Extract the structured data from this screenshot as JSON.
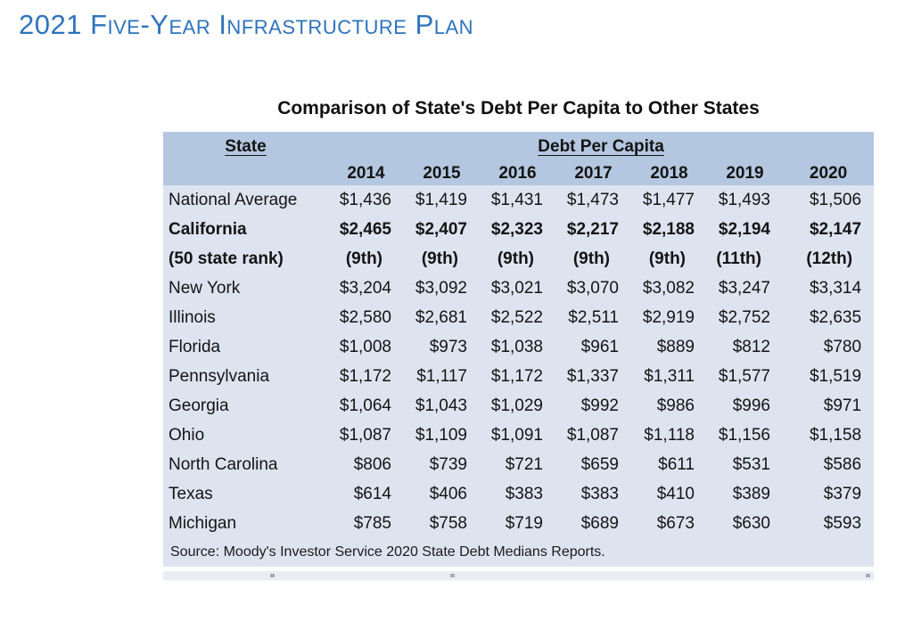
{
  "page": {
    "heading": "2021 Five-Year Infrastructure Plan"
  },
  "colors": {
    "heading_blue": "#2E73BD",
    "table_header_bg": "#b4c7e0",
    "table_body_bg": "#dde4f0"
  },
  "table": {
    "title": "Comparison of State's Debt Per Capita to Other States",
    "state_header": "State",
    "group_header": "Debt Per Capita",
    "years": [
      "2014",
      "2015",
      "2016",
      "2017",
      "2018",
      "2019",
      "2020"
    ],
    "rows": [
      {
        "label": "National Average",
        "bold": false,
        "rank": false,
        "values": [
          "$1,436",
          "$1,419",
          "$1,431",
          "$1,473",
          "$1,477",
          "$1,493",
          "$1,506"
        ]
      },
      {
        "label": "California",
        "bold": true,
        "rank": false,
        "values": [
          "$2,465",
          "$2,407",
          "$2,323",
          "$2,217",
          "$2,188",
          "$2,194",
          "$2,147"
        ]
      },
      {
        "label": "(50 state rank)",
        "bold": true,
        "rank": true,
        "values": [
          "(9th)",
          "(9th)",
          "(9th)",
          "(9th)",
          "(9th)",
          "(11th)",
          "(12th)"
        ]
      },
      {
        "label": "New York",
        "bold": false,
        "rank": false,
        "values": [
          "$3,204",
          "$3,092",
          "$3,021",
          "$3,070",
          "$3,082",
          "$3,247",
          "$3,314"
        ]
      },
      {
        "label": "Illinois",
        "bold": false,
        "rank": false,
        "values": [
          "$2,580",
          "$2,681",
          "$2,522",
          "$2,511",
          "$2,919",
          "$2,752",
          "$2,635"
        ]
      },
      {
        "label": "Florida",
        "bold": false,
        "rank": false,
        "values": [
          "$1,008",
          "$973",
          "$1,038",
          "$961",
          "$889",
          "$812",
          "$780"
        ]
      },
      {
        "label": "Pennsylvania",
        "bold": false,
        "rank": false,
        "values": [
          "$1,172",
          "$1,117",
          "$1,172",
          "$1,337",
          "$1,311",
          "$1,577",
          "$1,519"
        ]
      },
      {
        "label": "Georgia",
        "bold": false,
        "rank": false,
        "values": [
          "$1,064",
          "$1,043",
          "$1,029",
          "$992",
          "$986",
          "$996",
          "$971"
        ]
      },
      {
        "label": "Ohio",
        "bold": false,
        "rank": false,
        "values": [
          "$1,087",
          "$1,109",
          "$1,091",
          "$1,087",
          "$1,118",
          "$1,156",
          "$1,158"
        ]
      },
      {
        "label": "North Carolina",
        "bold": false,
        "rank": false,
        "values": [
          "$806",
          "$739",
          "$721",
          "$659",
          "$611",
          "$531",
          "$586"
        ]
      },
      {
        "label": "Texas",
        "bold": false,
        "rank": false,
        "values": [
          "$614",
          "$406",
          "$383",
          "$383",
          "$410",
          "$389",
          "$379"
        ]
      },
      {
        "label": "Michigan",
        "bold": false,
        "rank": false,
        "values": [
          "$785",
          "$758",
          "$719",
          "$689",
          "$673",
          "$630",
          "$593"
        ]
      }
    ],
    "source": "Source: Moody's Investor Service 2020 State Debt Medians Reports."
  }
}
